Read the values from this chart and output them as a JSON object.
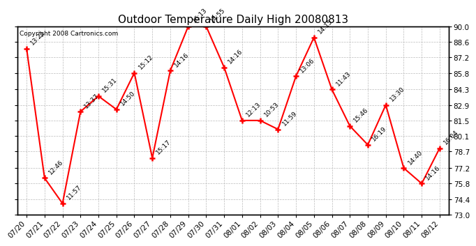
{
  "title": "Outdoor Temperature Daily High 20080813",
  "copyright": "Copyright 2008 Cartronics.com",
  "dates": [
    "07/20",
    "07/21",
    "07/22",
    "07/23",
    "07/24",
    "07/25",
    "07/26",
    "07/27",
    "07/28",
    "07/29",
    "07/30",
    "07/31",
    "08/01",
    "08/02",
    "08/03",
    "08/04",
    "08/05",
    "08/06",
    "08/07",
    "08/08",
    "08/09",
    "08/10",
    "08/11",
    "08/12"
  ],
  "temps": [
    88.0,
    76.3,
    74.0,
    82.3,
    83.7,
    82.5,
    85.8,
    78.1,
    86.0,
    90.0,
    90.0,
    86.3,
    81.5,
    81.5,
    80.7,
    85.5,
    89.0,
    84.3,
    81.0,
    79.3,
    82.9,
    77.2,
    75.8,
    79.0
  ],
  "times": [
    "13:21",
    "12:46",
    "11:57",
    "13:37",
    "15:31",
    "14:50",
    "15:12",
    "15:17",
    "14:16",
    "16:13",
    "14:55",
    "14:16",
    "12:13",
    "10:53",
    "11:59",
    "13:06",
    "14:15",
    "11:43",
    "15:46",
    "16:19",
    "13:30",
    "14:40",
    "14:16",
    "16:04"
  ],
  "ylim": [
    73.0,
    90.0
  ],
  "yticks": [
    73.0,
    74.4,
    75.8,
    77.2,
    78.7,
    80.1,
    81.5,
    82.9,
    84.3,
    85.8,
    87.2,
    88.6,
    90.0
  ],
  "line_color": "red",
  "bg_color": "white",
  "grid_color": "#bbbbbb",
  "title_fontsize": 11,
  "annot_fontsize": 6.5,
  "tick_fontsize": 7.5,
  "copyright_fontsize": 6.5
}
